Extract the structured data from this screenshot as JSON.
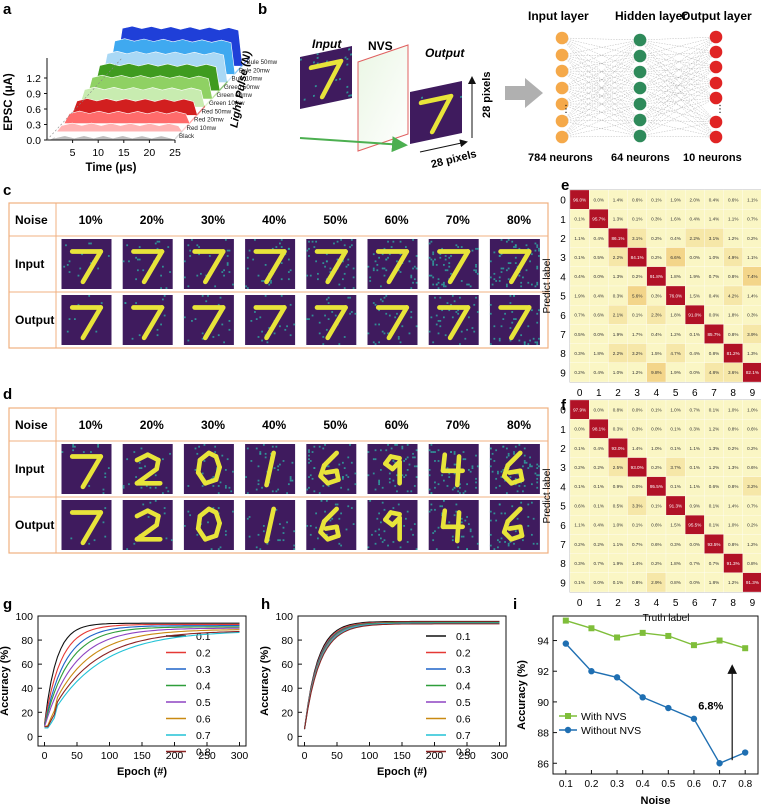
{
  "panels": {
    "a": "a",
    "b": "b",
    "c": "c",
    "d": "d",
    "e": "e",
    "f": "f",
    "g": "g",
    "h": "h",
    "i": "i"
  },
  "chart_data": [
    {
      "panel": "a",
      "type": "area",
      "title": "",
      "xlabel": "Time (μs)",
      "ylabel": "EPSC (μA)",
      "zlabel": "Light Pulse (N)",
      "xlim": [
        0,
        25
      ],
      "ylim": [
        0,
        1.2
      ],
      "xticks": [
        "5",
        "10",
        "15",
        "20",
        "25"
      ],
      "yticks": [
        "0.0",
        "0.3",
        "0.6",
        "0.9",
        "1.2"
      ],
      "series": [
        {
          "name": "Black",
          "color": "#bdbdbd",
          "level": 0.05
        },
        {
          "name": "Red 10mw",
          "color": "#ffb3b3",
          "level": 0.12
        },
        {
          "name": "Red 20mw",
          "color": "#ff6b6b",
          "level": 0.18
        },
        {
          "name": "Red 50mw",
          "color": "#d21f1f",
          "level": 0.25
        },
        {
          "name": "Green 10mw",
          "color": "#c8ecb0",
          "level": 0.3
        },
        {
          "name": "Green 20mw",
          "color": "#8fd163",
          "level": 0.36
        },
        {
          "name": "Green 50mw",
          "color": "#3f9b1f",
          "level": 0.42
        },
        {
          "name": "Bule 10mw",
          "color": "#a9d8f5",
          "level": 0.48
        },
        {
          "name": "Bule 20mw",
          "color": "#3fa9f0",
          "level": 0.55
        },
        {
          "name": "Bule 50mw",
          "color": "#1f3fd8",
          "level": 0.62
        }
      ]
    },
    {
      "panel": "e",
      "type": "heatmap",
      "xlabel": "Truth label",
      "ylabel": "Predict label",
      "labels": [
        "0",
        "1",
        "2",
        "3",
        "4",
        "5",
        "6",
        "7",
        "8",
        "9"
      ],
      "values": [
        [
          "96.0%",
          "0.0%",
          "1.4%",
          "0.6%",
          "0.1%",
          "1.9%",
          "2.0%",
          "0.4%",
          "0.6%",
          "1.1%"
        ],
        [
          "0.1%",
          "95.7%",
          "1.3%",
          "0.1%",
          "0.3%",
          "1.6%",
          "0.4%",
          "1.4%",
          "1.1%",
          "0.7%"
        ],
        [
          "1.1%",
          "0.4%",
          "86.1%",
          "3.1%",
          "0.2%",
          "0.4%",
          "2.2%",
          "3.1%",
          "1.2%",
          "0.2%"
        ],
        [
          "0.1%",
          "0.5%",
          "2.2%",
          "84.1%",
          "0.2%",
          "6.6%",
          "0.0%",
          "1.0%",
          "4.9%",
          "1.1%"
        ],
        [
          "0.4%",
          "0.0%",
          "1.3%",
          "0.2%",
          "91.8%",
          "1.8%",
          "1.9%",
          "0.7%",
          "0.8%",
          "7.4%"
        ],
        [
          "1.9%",
          "0.4%",
          "0.3%",
          "5.6%",
          "0.3%",
          "76.0%",
          "1.5%",
          "0.4%",
          "4.2%",
          "1.4%"
        ],
        [
          "0.7%",
          "0.6%",
          "2.1%",
          "0.1%",
          "2.3%",
          "1.8%",
          "91.0%",
          "0.0%",
          "1.8%",
          "0.3%"
        ],
        [
          "0.5%",
          "0.0%",
          "1.9%",
          "1.7%",
          "0.4%",
          "1.2%",
          "0.1%",
          "85.7%",
          "0.8%",
          "3.9%"
        ],
        [
          "0.3%",
          "1.8%",
          "2.2%",
          "3.2%",
          "1.5%",
          "4.7%",
          "0.4%",
          "0.8%",
          "81.2%",
          "1.3%"
        ],
        [
          "0.2%",
          "0.4%",
          "1.0%",
          "1.2%",
          "9.8%",
          "1.9%",
          "0.0%",
          "4.8%",
          "3.6%",
          "82.1%"
        ]
      ]
    },
    {
      "panel": "f",
      "type": "heatmap",
      "xlabel": "Truth label",
      "ylabel": "Predict label",
      "labels": [
        "0",
        "1",
        "2",
        "3",
        "4",
        "5",
        "6",
        "7",
        "8",
        "9"
      ],
      "values": [
        [
          "97.9%",
          "0.0%",
          "0.8%",
          "0.0%",
          "0.1%",
          "1.0%",
          "0.7%",
          "0.1%",
          "1.0%",
          "1.0%"
        ],
        [
          "0.0%",
          "98.1%",
          "0.3%",
          "0.3%",
          "0.0%",
          "0.1%",
          "0.3%",
          "1.2%",
          "0.8%",
          "0.6%"
        ],
        [
          "0.1%",
          "0.4%",
          "93.0%",
          "1.4%",
          "1.0%",
          "0.1%",
          "1.1%",
          "1.3%",
          "0.2%",
          "0.2%"
        ],
        [
          "0.2%",
          "0.2%",
          "2.5%",
          "93.0%",
          "0.2%",
          "3.7%",
          "0.1%",
          "1.2%",
          "1.3%",
          "0.6%"
        ],
        [
          "0.1%",
          "0.1%",
          "0.9%",
          "0.0%",
          "95.5%",
          "0.1%",
          "1.1%",
          "0.6%",
          "0.8%",
          "3.2%"
        ],
        [
          "0.6%",
          "0.1%",
          "0.5%",
          "3.3%",
          "0.1%",
          "91.3%",
          "0.9%",
          "0.1%",
          "1.4%",
          "0.7%"
        ],
        [
          "1.1%",
          "0.4%",
          "1.0%",
          "0.1%",
          "0.6%",
          "1.5%",
          "95.5%",
          "0.1%",
          "1.0%",
          "0.2%"
        ],
        [
          "0.2%",
          "0.2%",
          "1.1%",
          "0.7%",
          "0.6%",
          "0.3%",
          "0.0%",
          "93.5%",
          "0.8%",
          "1.2%"
        ],
        [
          "0.3%",
          "0.7%",
          "1.9%",
          "1.4%",
          "0.2%",
          "1.8%",
          "0.7%",
          "0.7%",
          "91.3%",
          "0.8%"
        ],
        [
          "0.1%",
          "0.0%",
          "0.1%",
          "0.8%",
          "2.9%",
          "0.8%",
          "0.0%",
          "1.8%",
          "1.2%",
          "91.3%"
        ]
      ]
    },
    {
      "panel": "g",
      "type": "line",
      "xlabel": "Epoch (#)",
      "ylabel": "Accuracy (%)",
      "xlim": [
        -10,
        310
      ],
      "ylim": [
        -8,
        100
      ],
      "xticks": [
        0,
        50,
        100,
        150,
        200,
        250,
        300
      ],
      "yticks": [
        0,
        20,
        40,
        60,
        80,
        100
      ],
      "series": [
        {
          "name": "0.1",
          "color": "#111111",
          "final": 94,
          "k": 0.055,
          "start": 10
        },
        {
          "name": "0.2",
          "color": "#e53935",
          "final": 93,
          "k": 0.04,
          "start": 10
        },
        {
          "name": "0.3",
          "color": "#1e63c8",
          "final": 92,
          "k": 0.032,
          "start": 9
        },
        {
          "name": "0.4",
          "color": "#2e9e3a",
          "final": 91,
          "k": 0.027,
          "start": 9
        },
        {
          "name": "0.5",
          "color": "#8e44c2",
          "final": 90,
          "k": 0.022,
          "start": 8
        },
        {
          "name": "0.6",
          "color": "#c98a12",
          "final": 89,
          "k": 0.018,
          "start": 8
        },
        {
          "name": "0.7",
          "color": "#22c2d6",
          "final": 88,
          "k": 0.013,
          "start": 7
        },
        {
          "name": "0.8",
          "color": "#8b2323",
          "final": 88,
          "k": 0.015,
          "start": 8
        }
      ]
    },
    {
      "panel": "h",
      "type": "line",
      "xlabel": "Epoch (#)",
      "ylabel": "Accuracy (%)",
      "xlim": [
        -10,
        310
      ],
      "ylim": [
        -8,
        100
      ],
      "xticks": [
        0,
        50,
        100,
        150,
        200,
        250,
        300
      ],
      "yticks": [
        0,
        20,
        40,
        60,
        80,
        100
      ],
      "series": [
        {
          "name": "0.1",
          "color": "#111111",
          "final": 95.5,
          "k": 0.05,
          "start": 6
        },
        {
          "name": "0.2",
          "color": "#e53935",
          "final": 95,
          "k": 0.048,
          "start": 6
        },
        {
          "name": "0.3",
          "color": "#1e63c8",
          "final": 94.5,
          "k": 0.047,
          "start": 6
        },
        {
          "name": "0.4",
          "color": "#2e9e3a",
          "final": 94.5,
          "k": 0.046,
          "start": 6
        },
        {
          "name": "0.5",
          "color": "#8e44c2",
          "final": 94,
          "k": 0.045,
          "start": 6
        },
        {
          "name": "0.6",
          "color": "#c98a12",
          "final": 93.8,
          "k": 0.044,
          "start": 6
        },
        {
          "name": "0.7",
          "color": "#22c2d6",
          "final": 94,
          "k": 0.043,
          "start": 6
        },
        {
          "name": "0.8",
          "color": "#8b2323",
          "final": 93.5,
          "k": 0.042,
          "start": 6
        }
      ]
    },
    {
      "panel": "i",
      "type": "line",
      "xlabel": "Noise",
      "ylabel": "Accuracy (%)",
      "x": [
        0.1,
        0.2,
        0.3,
        0.4,
        0.5,
        0.6,
        0.7,
        0.8
      ],
      "xlim": [
        0.05,
        0.85
      ],
      "ylim": [
        85.3,
        95.6
      ],
      "yticks": [
        86,
        88,
        90,
        92,
        94
      ],
      "series": [
        {
          "name": "With NVS",
          "color": "#7fbe3a",
          "values": [
            95.3,
            94.8,
            94.2,
            94.5,
            94.3,
            93.7,
            94.0,
            93.5
          ]
        },
        {
          "name": "Without NVS",
          "color": "#1f6fb2",
          "values": [
            93.8,
            92.0,
            91.6,
            90.3,
            89.6,
            88.9,
            86.0,
            86.7
          ]
        }
      ],
      "annotation": "6.8%"
    }
  ],
  "panel_b": {
    "input_label": "Input",
    "nvs_label": "NVS",
    "output_label": "Output",
    "pixels_v": "28 pixels",
    "pixels_h": "28 pixels",
    "layers": [
      "Input layer",
      "Hidden layer",
      "Output layer"
    ],
    "neurons": [
      "784 neurons",
      "64 neurons",
      "10 neurons"
    ],
    "layer_colors": [
      "#f5a94a",
      "#2e8a5a",
      "#e02424"
    ]
  },
  "table_c": {
    "header": "Noise",
    "columns": [
      "10%",
      "20%",
      "30%",
      "40%",
      "50%",
      "60%",
      "70%",
      "80%"
    ],
    "rows": [
      "Input",
      "Output"
    ],
    "digits": [
      "7",
      "7",
      "7",
      "7",
      "7",
      "7",
      "7",
      "7"
    ]
  },
  "table_d": {
    "header": "Noise",
    "columns": [
      "10%",
      "20%",
      "30%",
      "40%",
      "50%",
      "60%",
      "70%",
      "80%"
    ],
    "rows": [
      "Input",
      "Output"
    ],
    "digits": [
      "7",
      "2",
      "0",
      "1",
      "6",
      "9",
      "4",
      "6"
    ]
  },
  "colors": {
    "mnist_bg": "#3f1b5e",
    "mnist_fg": "#e8e43a",
    "mnist_noise": "#2fa3a0",
    "table_border": "#f0b080"
  }
}
